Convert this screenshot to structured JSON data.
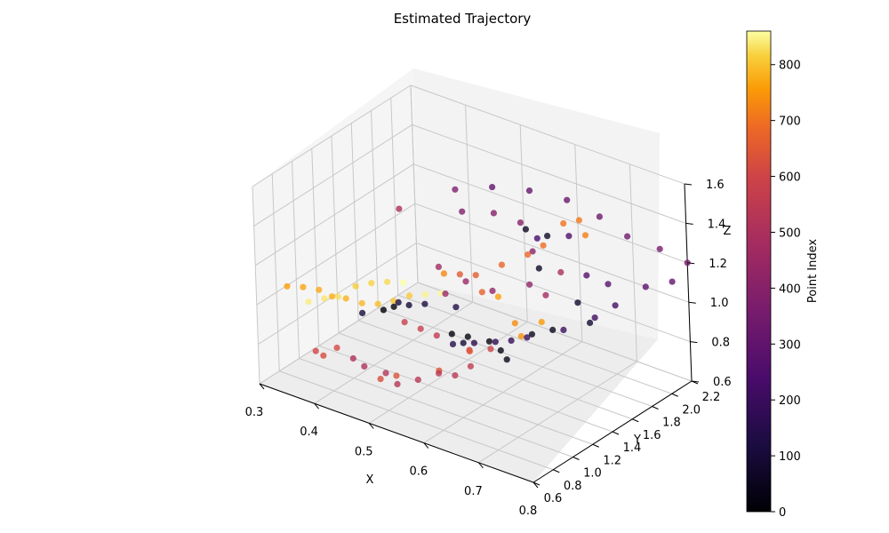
{
  "chart_data": {
    "type": "scatter",
    "title": "Estimated Trajectory",
    "xlabel": "X",
    "ylabel": "Y",
    "zlabel": "Z",
    "xlim": [
      0.3,
      0.8
    ],
    "ylim": [
      0.6,
      2.2
    ],
    "zlim": [
      0.6,
      1.6
    ],
    "xticks": [
      "0.3",
      "0.4",
      "0.5",
      "0.6",
      "0.7",
      "0.8"
    ],
    "yticks": [
      "0.6",
      "0.8",
      "1.0",
      "1.2",
      "1.4",
      "1.6",
      "1.8",
      "2.0",
      "2.2"
    ],
    "zticks": [
      "0.6",
      "0.8",
      "1.0",
      "1.2",
      "1.4",
      "1.6"
    ],
    "grid": true,
    "colormap": "inferno",
    "colorbar": {
      "label": "Point Index",
      "min": 0,
      "max": 860,
      "ticks": [
        "0",
        "100",
        "200",
        "300",
        "400",
        "500",
        "600",
        "700",
        "800"
      ]
    },
    "series": [
      {
        "index_range": [
          0,
          100
        ],
        "points": [
          [
            0.45,
            1.05,
            0.98
          ],
          [
            0.46,
            1.1,
            0.99
          ],
          [
            0.5,
            1.45,
            0.78
          ],
          [
            0.52,
            1.5,
            0.77
          ],
          [
            0.55,
            1.55,
            0.76
          ],
          [
            0.58,
            1.5,
            0.76
          ],
          [
            0.6,
            1.45,
            0.75
          ],
          [
            0.62,
            1.6,
            0.85
          ],
          [
            0.64,
            1.7,
            0.86
          ],
          [
            0.55,
            1.95,
            1.2
          ],
          [
            0.58,
            2.0,
            1.18
          ],
          [
            0.6,
            1.8,
            1.1
          ],
          [
            0.66,
            1.85,
            0.97
          ],
          [
            0.7,
            1.75,
            0.94
          ],
          [
            0.46,
            1.25,
            0.95
          ],
          [
            0.53,
            1.4,
            0.78
          ]
        ]
      },
      {
        "index_range": [
          100,
          300
        ],
        "points": [
          [
            0.42,
            1.0,
            0.95
          ],
          [
            0.45,
            1.2,
            0.97
          ],
          [
            0.48,
            1.3,
            0.96
          ],
          [
            0.5,
            1.5,
            0.9
          ],
          [
            0.52,
            1.35,
            0.78
          ],
          [
            0.55,
            1.4,
            0.8
          ],
          [
            0.58,
            1.45,
            0.82
          ],
          [
            0.6,
            1.5,
            0.83
          ],
          [
            0.62,
            1.55,
            0.85
          ],
          [
            0.66,
            1.7,
            0.88
          ],
          [
            0.7,
            1.8,
            0.95
          ],
          [
            0.72,
            1.9,
            1.0
          ],
          [
            0.58,
            1.9,
            1.2
          ],
          [
            0.62,
            2.0,
            1.22
          ],
          [
            0.65,
            2.0,
            1.05
          ],
          [
            0.68,
            2.05,
            1.02
          ],
          [
            0.74,
            2.1,
            1.05
          ],
          [
            0.78,
            2.15,
            1.1
          ]
        ]
      },
      {
        "index_range": [
          300,
          500
        ],
        "points": [
          [
            0.5,
            1.9,
            1.38
          ],
          [
            0.55,
            2.0,
            1.38
          ],
          [
            0.6,
            2.1,
            1.35
          ],
          [
            0.65,
            2.15,
            1.3
          ],
          [
            0.7,
            2.15,
            1.25
          ],
          [
            0.75,
            2.2,
            1.22
          ],
          [
            0.8,
            2.2,
            1.2
          ],
          [
            0.45,
            1.8,
            1.35
          ],
          [
            0.48,
            1.7,
            1.3
          ],
          [
            0.52,
            1.8,
            1.3
          ],
          [
            0.55,
            1.9,
            1.25
          ],
          [
            0.58,
            1.85,
            1.15
          ],
          [
            0.6,
            1.7,
            1.05
          ],
          [
            0.55,
            1.6,
            1.0
          ],
          [
            0.52,
            1.5,
            1.05
          ],
          [
            0.5,
            1.4,
            1.0
          ],
          [
            0.48,
            1.45,
            1.1
          ],
          [
            0.62,
            1.75,
            1.0
          ],
          [
            0.64,
            1.8,
            1.12
          ],
          [
            0.42,
            1.4,
            1.35
          ]
        ]
      },
      {
        "index_range": [
          500,
          650
        ],
        "points": [
          [
            0.4,
            1.0,
            0.7
          ],
          [
            0.42,
            1.0,
            0.68
          ],
          [
            0.45,
            1.05,
            0.66
          ],
          [
            0.48,
            1.0,
            0.65
          ],
          [
            0.5,
            1.1,
            0.66
          ],
          [
            0.52,
            1.2,
            0.68
          ],
          [
            0.55,
            1.2,
            0.7
          ],
          [
            0.57,
            1.25,
            0.75
          ],
          [
            0.5,
            1.3,
            0.82
          ],
          [
            0.48,
            1.25,
            0.85
          ],
          [
            0.46,
            1.2,
            0.88
          ],
          [
            0.55,
            1.35,
            0.78
          ],
          [
            0.58,
            1.4,
            0.8
          ],
          [
            0.35,
            0.9,
            0.72
          ],
          [
            0.38,
            0.95,
            0.75
          ],
          [
            0.36,
            0.92,
            0.7
          ],
          [
            0.44,
            1.05,
            0.62
          ],
          [
            0.46,
            1.1,
            0.64
          ],
          [
            0.53,
            1.15,
            0.72
          ],
          [
            0.56,
            1.3,
            0.8
          ]
        ]
      },
      {
        "index_range": [
          650,
          760
        ],
        "points": [
          [
            0.5,
            1.55,
            1.05
          ],
          [
            0.52,
            1.6,
            1.05
          ],
          [
            0.54,
            1.55,
            1.0
          ],
          [
            0.55,
            1.7,
            1.1
          ],
          [
            0.58,
            1.8,
            1.15
          ],
          [
            0.6,
            1.85,
            1.2
          ],
          [
            0.62,
            1.95,
            1.3
          ],
          [
            0.64,
            2.0,
            1.32
          ],
          [
            0.66,
            1.95,
            1.28
          ],
          [
            0.48,
            1.5,
            1.05
          ],
          [
            0.58,
            1.65,
            0.85
          ],
          [
            0.6,
            1.6,
            0.82
          ],
          [
            0.62,
            1.7,
            0.88
          ],
          [
            0.56,
            1.6,
            0.98
          ]
        ]
      },
      {
        "index_range": [
          760,
          860
        ],
        "points": [
          [
            0.32,
            0.8,
            1.05
          ],
          [
            0.34,
            0.85,
            1.05
          ],
          [
            0.36,
            0.9,
            1.04
          ],
          [
            0.38,
            0.92,
            1.02
          ],
          [
            0.4,
            0.95,
            1.02
          ],
          [
            0.42,
            1.0,
            1.0
          ],
          [
            0.44,
            1.05,
            1.0
          ],
          [
            0.46,
            1.1,
            1.02
          ],
          [
            0.48,
            1.15,
            1.05
          ],
          [
            0.4,
            1.05,
            1.05
          ],
          [
            0.42,
            1.1,
            1.07
          ],
          [
            0.44,
            1.15,
            1.08
          ],
          [
            0.38,
            0.98,
            1.0
          ],
          [
            0.36,
            0.95,
            0.98
          ],
          [
            0.34,
            0.9,
            0.96
          ],
          [
            0.5,
            1.2,
            1.06
          ],
          [
            0.52,
            1.25,
            1.07
          ],
          [
            0.46,
            1.2,
            1.08
          ]
        ]
      }
    ]
  }
}
